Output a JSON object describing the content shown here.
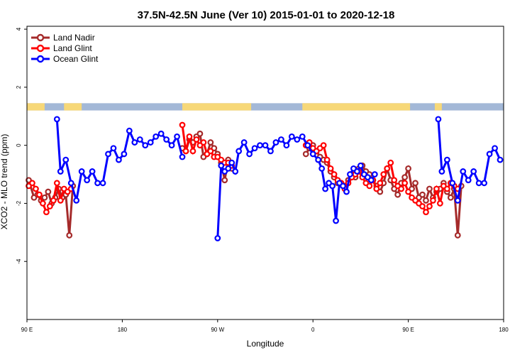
{
  "chart_data": {
    "type": "line",
    "title": "37.5N-42.5N June (Ver 10)   2015-01-01 to 2020-12-18",
    "xlabel": "Longitude",
    "ylabel": "XCO2 - MLO trend (ppm)",
    "xlim": [
      -90,
      180
    ],
    "ylim": [
      -6.0,
      4.1
    ],
    "xticks": [
      {
        "value": -90,
        "label": "90 E"
      },
      {
        "value": -36,
        "label": "180"
      },
      {
        "value": 18,
        "label": "90 W"
      },
      {
        "value": 72,
        "label": "0"
      },
      {
        "value": 126,
        "label": "90 E"
      },
      {
        "value": 180,
        "label": "180"
      }
    ],
    "yticks": [
      {
        "value": -4,
        "label": "-4"
      },
      {
        "value": -2,
        "label": "-2"
      },
      {
        "value": 0,
        "label": "0"
      },
      {
        "value": 2,
        "label": "2"
      },
      {
        "value": 4,
        "label": "4"
      }
    ],
    "land_band": {
      "y_range": [
        1.2,
        1.45
      ],
      "ocean_color": "#a3b8d7",
      "land_color": "#f7d878",
      "land_segments": [
        [
          -90,
          -80
        ],
        [
          -69,
          -59
        ],
        [
          -2,
          37
        ],
        [
          66,
          127
        ],
        [
          141,
          145
        ]
      ]
    },
    "legend": {
      "position": "top-left",
      "entries": [
        "Land Nadir",
        "Land Glint",
        "Ocean Glint"
      ]
    },
    "series": [
      {
        "name": "Land Nadir",
        "color": "#a52a2a",
        "segments": [
          {
            "x": [
              -89,
              -86,
              -84,
              -82,
              -80,
              -78,
              -76,
              -74,
              -72,
              -70,
              -68,
              -66,
              -64
            ],
            "y": [
              -1.2,
              -1.8,
              -1.7,
              -1.9,
              -1.8,
              -1.6,
              -2.0,
              -1.8,
              -1.5,
              -1.8,
              -1.7,
              -3.1,
              -1.4
            ]
          },
          {
            "x": [
              -2,
              0,
              2,
              4,
              6,
              8,
              10,
              12,
              14,
              16,
              18,
              20,
              22,
              24,
              26
            ],
            "y": [
              -0.1,
              -0.2,
              0.2,
              0.1,
              0.3,
              0.4,
              -0.4,
              -0.3,
              0.1,
              -0.1,
              -0.3,
              -0.6,
              -1.2,
              -0.5,
              -0.8
            ]
          },
          {
            "x": [
              68,
              70,
              72,
              74,
              76,
              78,
              80,
              82,
              84,
              86,
              88,
              90,
              92,
              94,
              96,
              98,
              100,
              102,
              104,
              106,
              108,
              110,
              112,
              114,
              116,
              118,
              120,
              122,
              124,
              126,
              128,
              130,
              132,
              134,
              136,
              138,
              140,
              142,
              144,
              146,
              148,
              150,
              152,
              154,
              156
            ],
            "y": [
              -0.3,
              -0.1,
              0.0,
              -0.2,
              -0.4,
              -0.5,
              -0.6,
              -0.9,
              -1.1,
              -1.3,
              -1.3,
              -1.4,
              -1.2,
              -1.0,
              -1.1,
              -0.8,
              -0.7,
              -0.9,
              -1.0,
              -1.2,
              -1.4,
              -1.6,
              -1.3,
              -0.8,
              -1.2,
              -1.5,
              -1.7,
              -1.3,
              -1.1,
              -0.8,
              -1.5,
              -1.3,
              -1.8,
              -1.7,
              -1.9,
              -1.5,
              -1.8,
              -1.6,
              -1.5,
              -1.3,
              -1.6,
              -1.8,
              -1.5,
              -3.1,
              -1.4
            ]
          }
        ]
      },
      {
        "name": "Land Glint",
        "color": "#ff0000",
        "segments": [
          {
            "x": [
              -89,
              -87,
              -85,
              -83,
              -81,
              -79,
              -77,
              -75,
              -73,
              -71,
              -69,
              -67,
              -65
            ],
            "y": [
              -1.4,
              -1.3,
              -1.5,
              -1.7,
              -2.0,
              -2.3,
              -2.1,
              -1.9,
              -1.3,
              -1.9,
              -1.5,
              -1.6,
              -1.5
            ]
          },
          {
            "x": [
              -2,
              0,
              2,
              4,
              6,
              8,
              10,
              12,
              14,
              16,
              18,
              20,
              22,
              24,
              26
            ],
            "y": [
              0.7,
              -0.2,
              0.3,
              -0.2,
              0.2,
              0.0,
              0.1,
              -0.3,
              -0.2,
              -0.4,
              -0.4,
              -0.5,
              -0.6,
              -0.6,
              -0.7
            ]
          },
          {
            "x": [
              68,
              70,
              72,
              74,
              76,
              78,
              80,
              82,
              84,
              86,
              88,
              90,
              92,
              94,
              96,
              98,
              100,
              102,
              104,
              106,
              108,
              110,
              112,
              114,
              116,
              118,
              120,
              122,
              124,
              126,
              128,
              130,
              132,
              134,
              136,
              138,
              140,
              142,
              144,
              146,
              148,
              150,
              152,
              154
            ],
            "y": [
              0.0,
              0.1,
              -0.1,
              -0.2,
              -0.1,
              0.0,
              -0.5,
              -0.8,
              -1.0,
              -1.2,
              -1.3,
              -1.5,
              -1.3,
              -1.1,
              -1.0,
              -0.9,
              -1.1,
              -1.3,
              -1.4,
              -1.2,
              -1.5,
              -1.3,
              -1.0,
              -0.8,
              -0.6,
              -1.2,
              -1.4,
              -1.5,
              -1.3,
              -1.6,
              -1.8,
              -1.9,
              -2.0,
              -2.1,
              -2.3,
              -2.1,
              -1.9,
              -1.5,
              -2.0,
              -1.4,
              -1.5,
              -1.3,
              -1.4,
              -1.5
            ]
          }
        ]
      },
      {
        "name": "Ocean Glint",
        "color": "#0000ff",
        "segments": [
          {
            "x": [
              -73,
              -71,
              -68,
              -65,
              -62,
              -59,
              -56,
              -53,
              -50,
              -47,
              -44,
              -41,
              -38,
              -35,
              -32,
              -29,
              -26,
              -23,
              -20,
              -17,
              -14,
              -11,
              -8,
              -5,
              -2
            ],
            "y": [
              0.9,
              -0.9,
              -0.5,
              -1.3,
              -1.9,
              -0.9,
              -1.2,
              -0.9,
              -1.3,
              -1.3,
              -0.3,
              -0.1,
              -0.5,
              -0.3,
              0.5,
              0.1,
              0.2,
              0.0,
              0.1,
              0.3,
              0.4,
              0.2,
              0.0,
              0.3,
              -0.4
            ]
          },
          {
            "x": [
              18,
              20,
              22,
              24,
              26,
              28,
              30,
              33,
              36,
              39,
              42,
              45,
              48,
              51,
              54,
              57,
              60,
              63,
              66,
              69,
              72,
              75,
              77,
              79,
              81,
              83,
              85,
              87,
              89,
              91,
              93,
              95,
              97,
              99,
              101,
              103,
              105,
              107
            ],
            "y": [
              -3.2,
              -0.7,
              -0.9,
              -0.8,
              -0.6,
              -0.9,
              -0.2,
              0.1,
              -0.3,
              -0.1,
              0.0,
              0.0,
              -0.2,
              0.1,
              0.2,
              0.0,
              0.3,
              0.2,
              0.3,
              0.0,
              -0.3,
              -0.5,
              -0.8,
              -1.5,
              -1.3,
              -1.4,
              -2.6,
              -1.3,
              -1.4,
              -1.6,
              -1.0,
              -0.8,
              -0.9,
              -0.7,
              -1.0,
              -1.1,
              -1.2,
              -1.0
            ]
          },
          {
            "x": [
              143,
              145,
              148,
              151,
              154,
              157,
              160,
              163,
              166,
              169,
              172,
              175,
              178
            ],
            "y": [
              0.9,
              -0.9,
              -0.5,
              -1.3,
              -1.9,
              -0.9,
              -1.2,
              -0.9,
              -1.3,
              -1.3,
              -0.3,
              -0.1,
              -0.5
            ]
          }
        ]
      }
    ]
  }
}
